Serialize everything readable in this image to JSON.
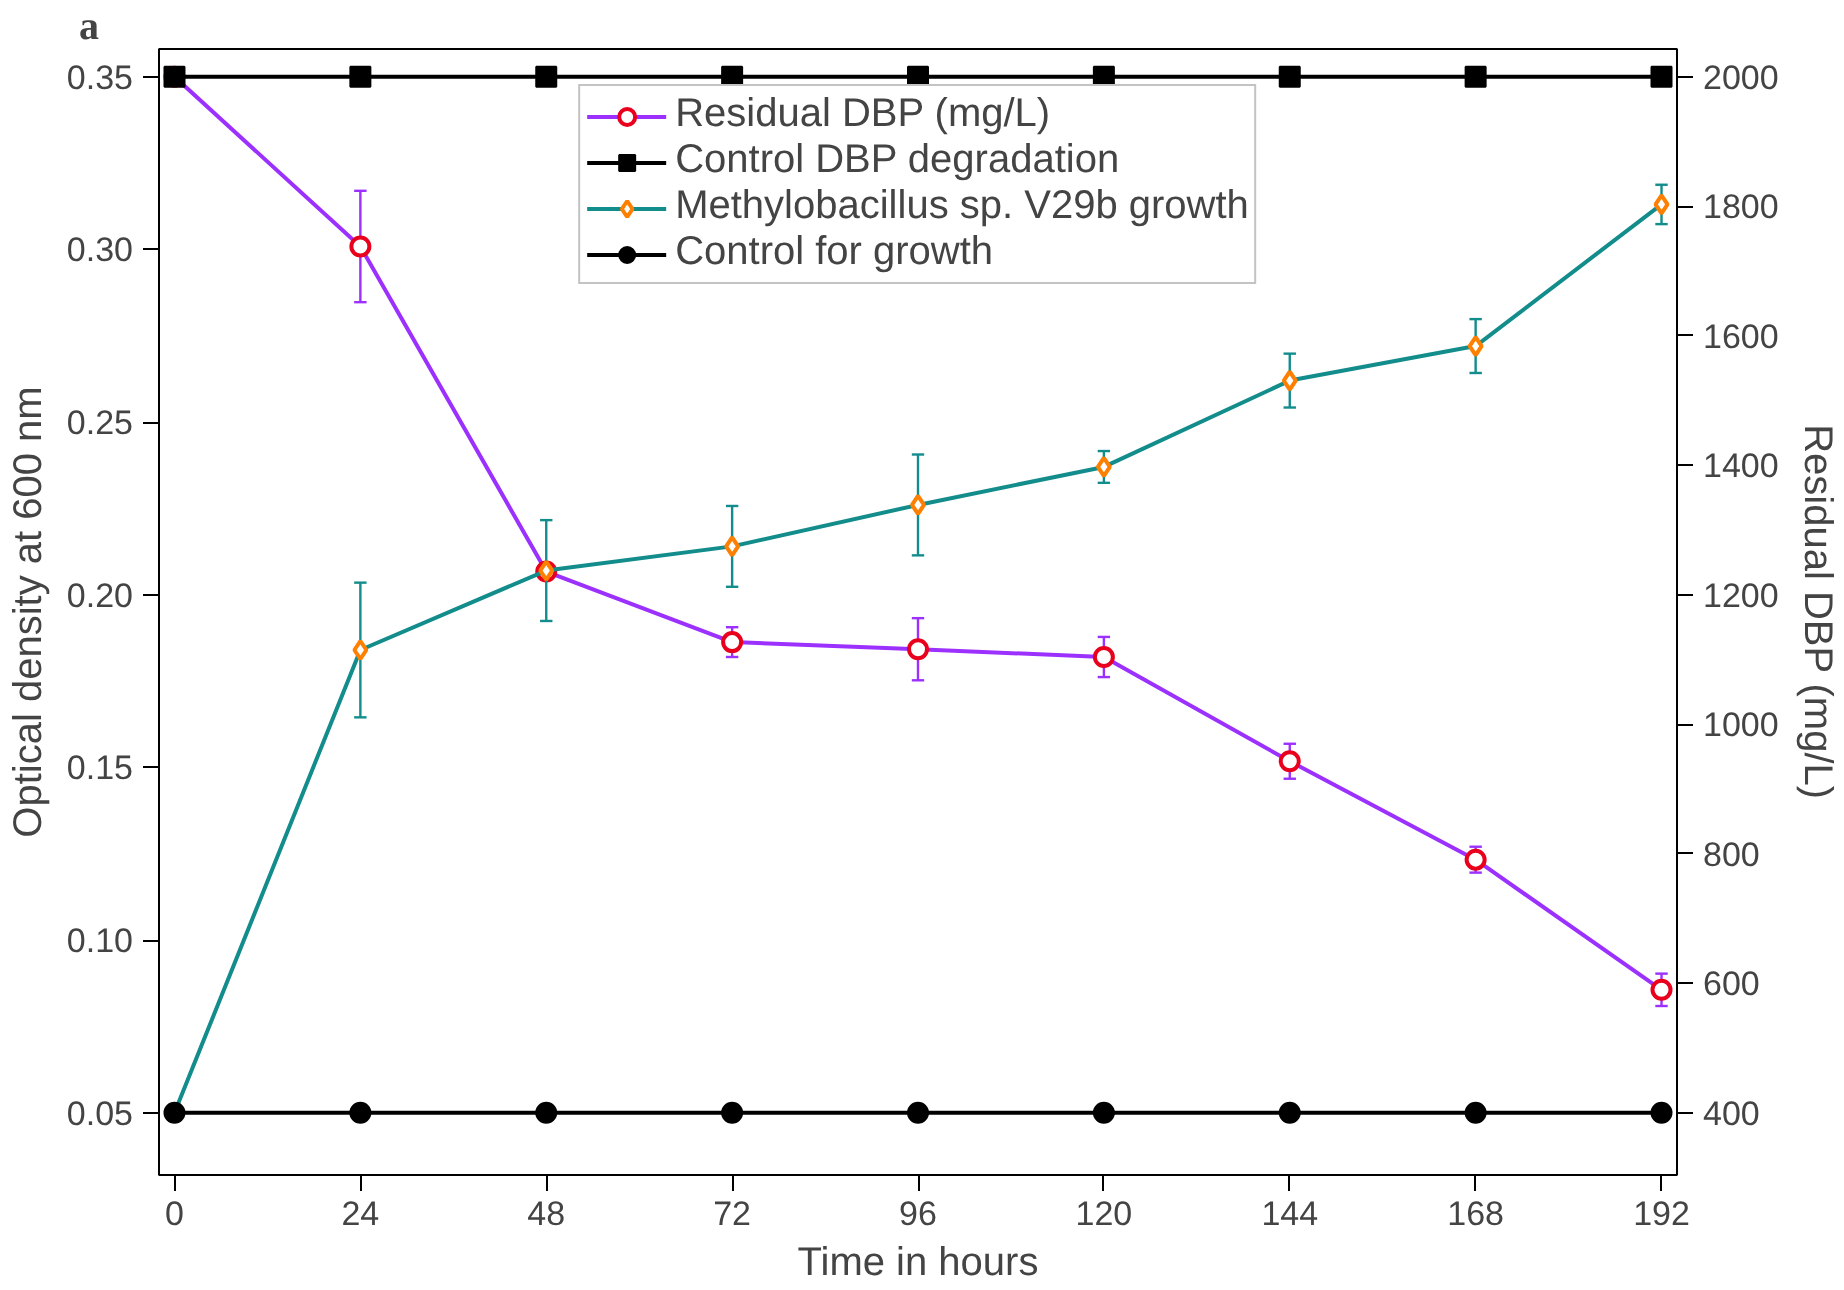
{
  "chart_data": {
    "type": "line",
    "xlabel": "Time in hours",
    "ylabel": "Optical density at 600 nm",
    "y2label": "Residual DBP (mg/L)",
    "annotations": [
      "a"
    ],
    "x": [
      0,
      24,
      48,
      72,
      96,
      120,
      144,
      168,
      192
    ],
    "xlim": [
      -2,
      194
    ],
    "xticks": [
      0,
      24,
      48,
      72,
      96,
      120,
      144,
      168,
      192
    ],
    "ylim": [
      0.032,
      0.358
    ],
    "yticks": [
      {
        "value": 0.05,
        "label": "0.05"
      },
      {
        "value": 0.1,
        "label": "0.10"
      },
      {
        "value": 0.15,
        "label": "0.15"
      },
      {
        "value": 0.2,
        "label": "0.20"
      },
      {
        "value": 0.25,
        "label": "0.25"
      },
      {
        "value": 0.3,
        "label": "0.30"
      },
      {
        "value": 0.35,
        "label": "0.35"
      }
    ],
    "y2lim": [
      304,
      2043
    ],
    "y2ticks": [
      400,
      600,
      800,
      1000,
      1200,
      1400,
      1600,
      1800,
      2000
    ],
    "grid": false,
    "legend": "top",
    "line_style": "solid",
    "series": [
      {
        "name": "Residual DBP (mg/L)",
        "axis": "y2",
        "color": "#9b30ff",
        "marker": "circle",
        "colors": [
          "#e8001c",
          "#e8001c",
          "#e8001c",
          "#e8001c",
          "#e8001c",
          "#e8001c",
          "#e8001c",
          "#e8001c",
          "#e8001c"
        ],
        "values": [
          2000,
          1738,
          1236,
          1127,
          1116,
          1104,
          943,
          791,
          590
        ],
        "errors": [
          null,
          86,
          null,
          23,
          48,
          31,
          27,
          20,
          25
        ]
      },
      {
        "name": "Control DBP degradation",
        "axis": "y2",
        "color": "#000000",
        "marker": "square",
        "values": [
          2000,
          2000,
          2000,
          2000,
          2000,
          2000,
          2000,
          2000,
          2000
        ]
      },
      {
        "name": "Methylobacillus sp. V29b growth",
        "color": "#138c8c",
        "marker": "diamond",
        "colors": [
          "#ff7f00",
          "#ff7f00",
          "#ff7f00",
          "#ff7f00",
          "#ff7f00",
          "#ff7f00",
          "#ff7f00",
          "#ff7f00",
          "#ff7f00"
        ],
        "values": [
          0.05,
          0.184,
          0.207,
          0.214,
          0.226,
          0.237,
          0.262,
          0.272,
          0.313
        ],
        "errors": [
          null,
          0.0195,
          0.0146,
          0.0117,
          0.0146,
          0.0046,
          0.0078,
          0.0078,
          0.0057
        ]
      },
      {
        "name": "Control for growth",
        "color": "#000000",
        "marker": "circle",
        "values": [
          0.05,
          0.05,
          0.05,
          0.05,
          0.05,
          0.05,
          0.05,
          0.05,
          0.05
        ]
      }
    ]
  }
}
